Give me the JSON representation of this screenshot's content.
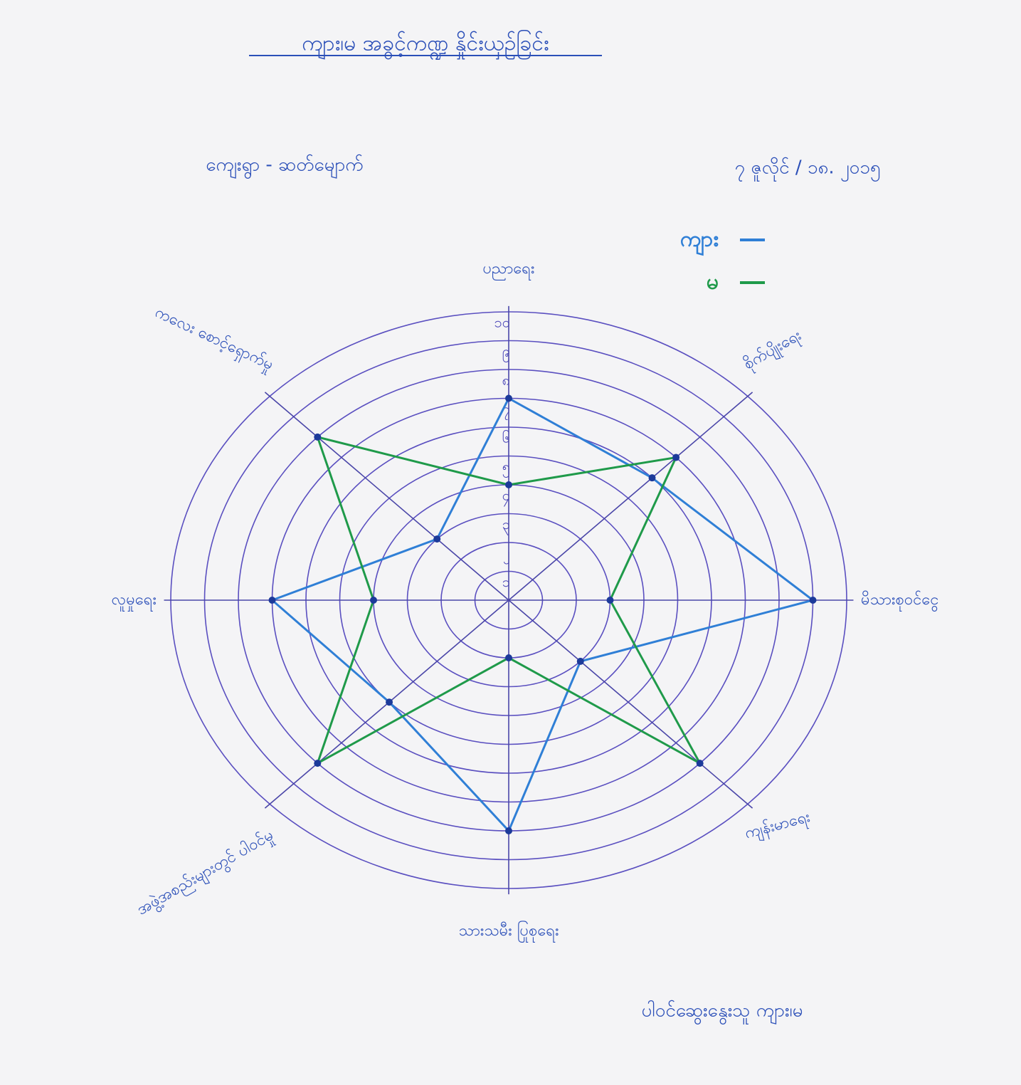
{
  "chart_data": {
    "type": "radar",
    "title": "ကျား၊မ အခွင့်ကဏ္ဍ နှိုင်းယှဉ်ခြင်း",
    "annotations": [
      "ကျေးရွာ - ဆတ်မျောက်",
      "၇ ဇူလိုင် / ၁၈. ၂၀၁၅",
      "ပါဝင်ဆွေးနွေးသူ ကျား၊မ"
    ],
    "categories": [
      "ပညာရေး",
      "စိုက်ပျိုးရေး",
      "မိသားစုဝင်ငွေ",
      "ကျန်းမာရေး",
      "သားသမီး ပြုစုရေး",
      "အဖွဲ့အစည်းများတွင် ပါဝင်မှု",
      "လူမှုရေး",
      "ကလေး စောင့်ရှောက်မှု"
    ],
    "series": [
      {
        "name": "ကျား",
        "color": "#2f7fd6",
        "values": [
          7,
          6,
          9,
          3,
          8,
          5,
          7,
          3
        ]
      },
      {
        "name": "မ",
        "color": "#1f9a4a",
        "values": [
          4,
          7,
          3,
          8,
          2,
          8,
          4,
          8
        ]
      }
    ],
    "rlim": [
      0,
      10
    ],
    "rticks": [
      {
        "value": 1,
        "label": "၁"
      },
      {
        "value": 2,
        "label": "၂"
      },
      {
        "value": 3,
        "label": "၃"
      },
      {
        "value": 4,
        "label": "၄"
      },
      {
        "value": 5,
        "label": "၅"
      },
      {
        "value": 6,
        "label": "၆"
      },
      {
        "value": 7,
        "label": "၇"
      },
      {
        "value": 8,
        "label": "၈"
      },
      {
        "value": 9,
        "label": "၉"
      },
      {
        "value": 10,
        "label": "၁၀"
      }
    ],
    "grid": true
  }
}
